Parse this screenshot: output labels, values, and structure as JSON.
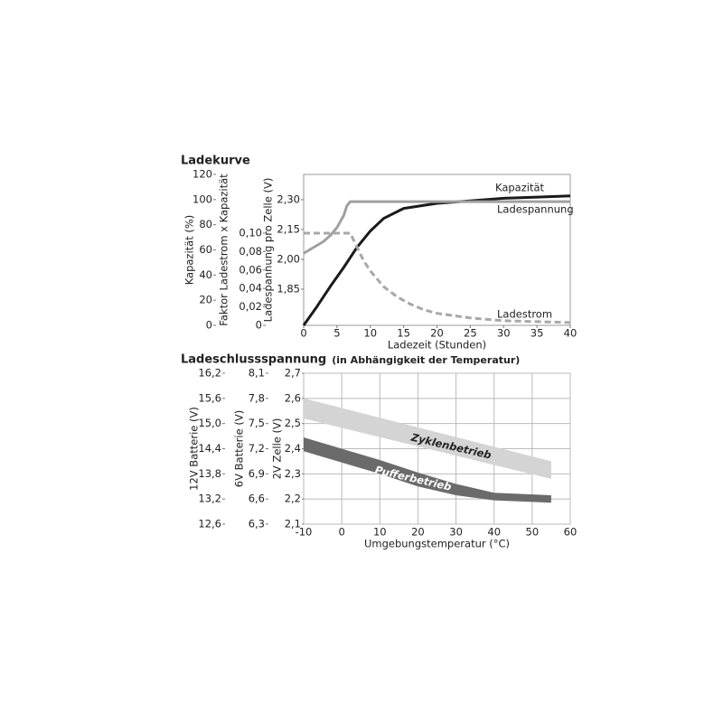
{
  "chart_data": [
    {
      "type": "line",
      "title": "Ladekurve",
      "xlabel": "Ladezeit (Stunden)",
      "xlim": [
        0,
        40
      ],
      "xticks": [
        0,
        5,
        10,
        15,
        20,
        25,
        30,
        35,
        40
      ],
      "grid": false,
      "y_axes": [
        {
          "label": "Kapazität (%)",
          "ylim": [
            0,
            120
          ],
          "yticks": [
            0,
            20,
            40,
            60,
            80,
            100,
            120
          ]
        },
        {
          "label": "Faktor Ladestrom x Kapazität",
          "ylim": [
            0,
            0.1637
          ],
          "yticks": [
            0,
            {
              "value": 0.02,
              "label": "0,02"
            },
            {
              "value": 0.04,
              "label": "0,04"
            },
            {
              "value": 0.06,
              "label": "0,06"
            },
            {
              "value": 0.08,
              "label": "0,08"
            },
            {
              "value": 0.1,
              "label": "0,10"
            }
          ]
        },
        {
          "label": "Ladespannung pro Zelle (V)",
          "ylim": [
            1.668,
            2.427
          ],
          "yticks": [
            {
              "value": 1.85,
              "label": "1,85"
            },
            {
              "value": 2.0,
              "label": "2,00"
            },
            {
              "value": 2.15,
              "label": "2,15"
            },
            {
              "value": 2.3,
              "label": "2,30"
            }
          ]
        }
      ],
      "series": [
        {
          "name": "Kapazität",
          "color": "#1a1a1a",
          "dashed": false,
          "axis": 0,
          "x": [
            0,
            2,
            4,
            6,
            7,
            8,
            10,
            12,
            15,
            20,
            25,
            30,
            35,
            40
          ],
          "values": [
            0,
            15,
            31,
            46,
            54,
            62,
            75,
            85,
            93,
            97,
            99,
            101,
            102,
            103
          ]
        },
        {
          "name": "Ladespannung",
          "color": "#a0a0a0",
          "dashed": false,
          "axis": 2,
          "x": [
            0,
            1,
            2,
            3,
            4,
            5,
            6,
            6.5,
            7,
            10,
            20,
            30,
            40
          ],
          "values": [
            2.03,
            2.05,
            2.07,
            2.09,
            2.12,
            2.16,
            2.22,
            2.27,
            2.29,
            2.29,
            2.29,
            2.29,
            2.29
          ]
        },
        {
          "name": "Ladestrom",
          "color": "#a8a8a8",
          "dashed": true,
          "axis": 1,
          "x": [
            0,
            7,
            8,
            9,
            10,
            12,
            14,
            16,
            18,
            20,
            25,
            30,
            35,
            40
          ],
          "values": [
            0.1,
            0.1,
            0.085,
            0.07,
            0.059,
            0.042,
            0.031,
            0.023,
            0.017,
            0.013,
            0.008,
            0.005,
            0.004,
            0.003
          ]
        }
      ]
    },
    {
      "type": "band",
      "title": "Ladeschlussspannung",
      "subtitle": "(in Abhängigkeit der Temperatur)",
      "xlabel": "Umgebungstemperatur (°C)",
      "xlim": [
        -10,
        60
      ],
      "xticks": [
        -10,
        0,
        10,
        20,
        30,
        40,
        50,
        60
      ],
      "grid": true,
      "y_axes": [
        {
          "label": "12V Batterie (V)",
          "ylim": [
            12.6,
            16.2
          ],
          "yticks": [
            {
              "value": 12.6,
              "label": "12,6"
            },
            {
              "value": 13.2,
              "label": "13,2"
            },
            {
              "value": 13.8,
              "label": "13,8"
            },
            {
              "value": 14.4,
              "label": "14,4"
            },
            {
              "value": 15.0,
              "label": "15,0"
            },
            {
              "value": 15.6,
              "label": "15,6"
            },
            {
              "value": 16.2,
              "label": "16,2"
            }
          ]
        },
        {
          "label": "6V Batterie (V)",
          "ylim": [
            6.3,
            8.1
          ],
          "yticks": [
            {
              "value": 6.3,
              "label": "6,3"
            },
            {
              "value": 6.6,
              "label": "6,6"
            },
            {
              "value": 6.9,
              "label": "6,9"
            },
            {
              "value": 7.2,
              "label": "7,2"
            },
            {
              "value": 7.5,
              "label": "7,5"
            },
            {
              "value": 7.8,
              "label": "7,8"
            },
            {
              "value": 8.1,
              "label": "8,1"
            }
          ]
        },
        {
          "label": "2V Zelle (V)",
          "ylim": [
            2.1,
            2.7
          ],
          "yticks": [
            {
              "value": 2.1,
              "label": "2,1"
            },
            {
              "value": 2.2,
              "label": "2,2"
            },
            {
              "value": 2.3,
              "label": "2,3"
            },
            {
              "value": 2.4,
              "label": "2,4"
            },
            {
              "value": 2.5,
              "label": "2,5"
            },
            {
              "value": 2.6,
              "label": "2,6"
            },
            {
              "value": 2.7,
              "label": "2,7"
            }
          ]
        }
      ],
      "series": [
        {
          "name": "Zyklenbetrieb",
          "color": "#d4d4d4",
          "axis": 2,
          "x": [
            -10,
            55
          ],
          "upper": [
            2.6,
            2.35
          ],
          "lower": [
            2.52,
            2.28
          ]
        },
        {
          "name": "Pufferbetrieb",
          "color": "#6b6b6b",
          "axis": 2,
          "x": [
            -10,
            0,
            10,
            20,
            30,
            40,
            55
          ],
          "upper": [
            2.445,
            2.4,
            2.355,
            2.305,
            2.26,
            2.225,
            2.215
          ],
          "lower": [
            2.39,
            2.345,
            2.3,
            2.25,
            2.215,
            2.195,
            2.185
          ]
        }
      ]
    }
  ]
}
